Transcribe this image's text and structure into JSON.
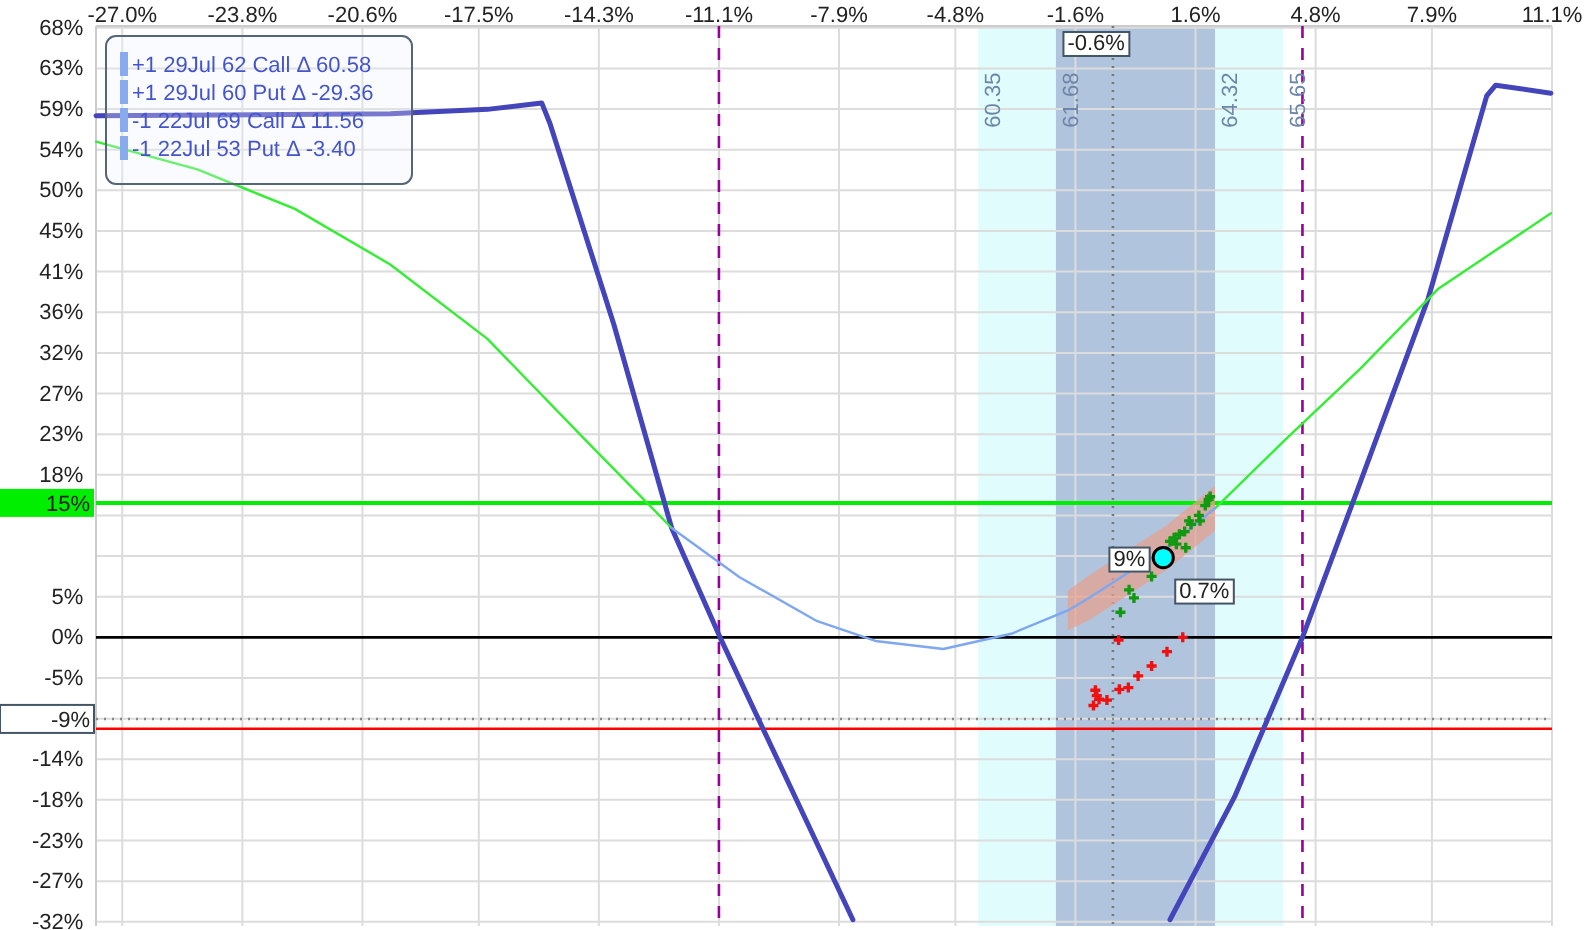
{
  "chart_data": {
    "type": "line",
    "xlim": [
      -27.7,
      11.1
    ],
    "ylim": [
      -32.2,
      68.2
    ],
    "xticks": [
      {
        "value": -27.0,
        "label": "-27.0%"
      },
      {
        "value": -23.8,
        "label": "-23.8%"
      },
      {
        "value": -20.6,
        "label": "-20.6%"
      },
      {
        "value": -17.5,
        "label": "-17.5%"
      },
      {
        "value": -14.3,
        "label": "-14.3%"
      },
      {
        "value": -11.1,
        "label": "-11.1%"
      },
      {
        "value": -7.9,
        "label": "-7.9%"
      },
      {
        "value": -4.8,
        "label": "-4.8%"
      },
      {
        "value": -1.6,
        "label": "-1.6%"
      },
      {
        "value": 1.6,
        "label": "1.6%"
      },
      {
        "value": 4.8,
        "label": "4.8%"
      },
      {
        "value": 7.9,
        "label": "7.9%"
      },
      {
        "value": 11.1,
        "label": "11.1%"
      }
    ],
    "yticks": [
      {
        "value": -31.73,
        "label": "-32%"
      },
      {
        "value": -27.2,
        "label": "-27%"
      },
      {
        "value": -22.67,
        "label": "-23%"
      },
      {
        "value": -18.13,
        "label": "-18%"
      },
      {
        "value": -13.6,
        "label": "-14%"
      },
      {
        "value": -9.07,
        "label": null
      },
      {
        "value": -4.53,
        "label": "-5%"
      },
      {
        "value": 0,
        "label": "0%"
      },
      {
        "value": 4.53,
        "label": "5%"
      },
      {
        "value": 9.07,
        "label": null
      },
      {
        "value": 13.6,
        "label": null
      },
      {
        "value": 18.13,
        "label": "18%"
      },
      {
        "value": 22.67,
        "label": "23%"
      },
      {
        "value": 27.2,
        "label": "27%"
      },
      {
        "value": 31.73,
        "label": "32%"
      },
      {
        "value": 36.27,
        "label": "36%"
      },
      {
        "value": 40.8,
        "label": "41%"
      },
      {
        "value": 45.33,
        "label": "45%"
      },
      {
        "value": 49.87,
        "label": "50%"
      },
      {
        "value": 54.4,
        "label": "54%"
      },
      {
        "value": 58.93,
        "label": "59%"
      },
      {
        "value": 63.47,
        "label": "63%"
      },
      {
        "value": 68,
        "label": "68%"
      }
    ],
    "grid": true,
    "bands": [
      {
        "axis": "x",
        "from": -4.19,
        "to": 3.93,
        "color": "#e0fcfc"
      },
      {
        "axis": "x",
        "from": -2.12,
        "to": 2.12,
        "color": "#b0c4de"
      }
    ],
    "ref_lines": [
      {
        "axis": "y",
        "value": 0,
        "color": "#000000",
        "line_style": "solid"
      },
      {
        "axis": "y",
        "value": 15,
        "label": "15%",
        "color": "#00ee00",
        "line_style": "solid"
      },
      {
        "axis": "y",
        "value": -9.1,
        "label": "-9%",
        "color": "#888888",
        "line_style": "dotted"
      },
      {
        "axis": "y",
        "value": -10.2,
        "color": "#ff0000",
        "line_style": "solid"
      },
      {
        "axis": "x",
        "value": -11.1,
        "color": "#990099",
        "line_style": "dashed"
      },
      {
        "axis": "x",
        "value": 4.45,
        "color": "#990099",
        "line_style": "dashed"
      },
      {
        "axis": "x",
        "value": -0.6,
        "label": "-0.6%",
        "color": "#777777",
        "line_style": "dotted"
      }
    ],
    "series": [
      {
        "color": "#4444bb",
        "x": [
          -27.7,
          -19.86,
          -17.27,
          -15.82,
          -15.6,
          -13.9,
          -12.36,
          -11.07,
          -7.53,
          null,
          0.92,
          2.64,
          4.45,
          5.84,
          7.8,
          9.36,
          9.6,
          11.07
        ],
        "values": [
          58.2,
          58.4,
          58.9,
          59.6,
          57.3,
          34.9,
          12.2,
          0,
          -31.5,
          null,
          -31.5,
          -17.8,
          0,
          15.6,
          37.8,
          60.4,
          61.6,
          60.7
        ]
      },
      {
        "color": "#33ee33",
        "x": [
          -27.7,
          -25.0,
          -22.4,
          -19.86,
          -17.27,
          -14.7,
          -12.36,
          -10.55,
          -8.48,
          -6.93,
          -5.12,
          -3.31,
          -1.24,
          0.83,
          2.12,
          3.93,
          6.0,
          8.07,
          11.07
        ],
        "values": [
          55.3,
          52.2,
          47.8,
          41.6,
          33.3,
          22.2,
          12.2,
          null,
          null,
          null,
          null,
          null,
          null,
          null,
          14.4,
          21.8,
          30.0,
          38.9,
          47.3
        ]
      },
      {
        "color": "#7da7f0",
        "x": [
          -12.36,
          -10.55,
          -8.48,
          -6.93,
          -5.12,
          -3.31,
          -1.8,
          -1.24,
          0.83,
          2.12
        ],
        "values": [
          12.2,
          6.7,
          1.8,
          -0.4,
          -1.3,
          0.4,
          3.0,
          4.4,
          10.0,
          14.4
        ],
        "lower": [
          null,
          null,
          null,
          null,
          null,
          null,
          0.8,
          1.9,
          7.5,
          11.9
        ],
        "upper": [
          null,
          null,
          null,
          null,
          null,
          null,
          5.2,
          6.9,
          12.5,
          16.9
        ]
      },
      {
        "type": "scatter",
        "marker": "cross",
        "color": "#119911",
        "x": [
          1.99,
          1.95,
          1.86,
          1.69,
          1.72,
          1.43,
          1.48,
          1.31,
          1.17,
          1.03,
          0.92,
          1.09,
          1.34,
          0.43,
          -0.17,
          -0.04,
          -0.4
        ],
        "values": [
          15.7,
          15.4,
          14.7,
          13.6,
          13.0,
          13.0,
          12.6,
          11.8,
          11.5,
          11.1,
          10.7,
          10.4,
          10.0,
          6.8,
          5.3,
          4.4,
          2.8
        ]
      },
      {
        "type": "scatter",
        "marker": "cross",
        "color": "#ee1111",
        "x": [
          -0.45,
          1.26,
          0.84,
          0.43,
          0.07,
          -0.19,
          -0.43,
          -0.76,
          -0.97,
          -1.07,
          -1.03,
          -1.12
        ],
        "values": [
          -0.3,
          0,
          -1.6,
          -3.2,
          -4.3,
          -5.6,
          -5.8,
          -7.0,
          -6.9,
          -5.9,
          -6.5,
          -7.6
        ]
      },
      {
        "type": "scatter",
        "marker": "circle",
        "color": "#00ffff",
        "x": [
          0.74
        ],
        "values": [
          8.9
        ]
      }
    ],
    "annotations": [
      "+1 29Jul 62 Call Δ 60.58",
      "+1 29Jul 60 Put Δ -29.36",
      "-1 22Jul 69 Call Δ 11.56",
      "-1 22Jul 53 Put Δ -3.40",
      {
        "text": "60.35",
        "x": -4.19,
        "y": 63
      },
      {
        "text": "61.68",
        "x": -2.12,
        "y": 63
      },
      {
        "text": "64.32",
        "x": 2.12,
        "y": 63
      },
      {
        "text": "65.65",
        "x": 3.93,
        "y": 63
      },
      {
        "text": "0.7%",
        "x": 0.74,
        "y": 8.9
      },
      {
        "text": "9%",
        "x": 0.74,
        "y": 8.9
      }
    ]
  }
}
